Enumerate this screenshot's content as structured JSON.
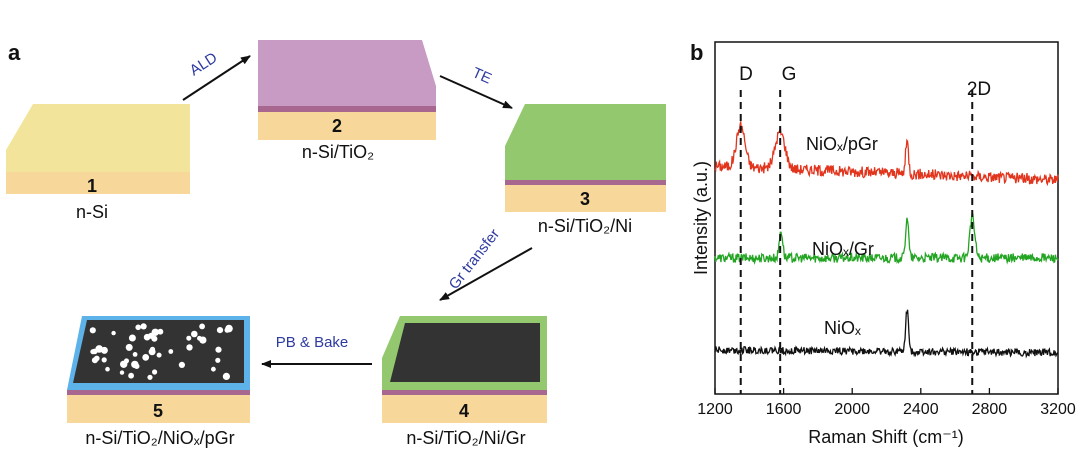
{
  "panel_a": {
    "label": "a",
    "steps": [
      {
        "number": "1",
        "label": "n-Si"
      },
      {
        "number": "2",
        "label": "n-Si/TiO₂"
      },
      {
        "number": "3",
        "label": "n-Si/TiO₂/Ni"
      },
      {
        "number": "4",
        "label": "n-Si/TiO₂/Ni/Gr"
      },
      {
        "number": "5",
        "label": "n-Si/TiO₂/NiOₓ/pGr"
      }
    ],
    "arrows": [
      "ALD",
      "TE",
      "Gr transfer",
      "PB & Bake"
    ],
    "colors": {
      "si": "#f7d79a",
      "tio2": "#a7678f",
      "ni": "#93c86e",
      "graphene": "#333333",
      "niox": "#5eb2ea",
      "arrow_text": "#2d3aa0",
      "top_1": "#f2e49a",
      "top_2": "#c79bc3"
    }
  },
  "panel_b": {
    "label": "b",
    "peaks": [
      "D",
      "G",
      "2D"
    ],
    "peak_positions": [
      1350,
      1580,
      2700
    ],
    "xlabel": "Raman Shift (cm⁻¹)",
    "ylabel": "Intensity (a.u.)",
    "xticks": [
      "1200",
      "1600",
      "2000",
      "2400",
      "2800",
      "3200"
    ],
    "series_labels": [
      "NiOₓ/pGr",
      "NiOₓ/Gr",
      "NiOₓ"
    ]
  },
  "chart_data": {
    "type": "line",
    "xlabel": "Raman Shift (cm⁻¹)",
    "ylabel": "Intensity (a.u.)",
    "xlim": [
      1200,
      3200
    ],
    "xticks": [
      1200,
      1600,
      2000,
      2400,
      2800,
      3200
    ],
    "series": [
      {
        "name": "NiOₓ/pGr",
        "color": "#e2351e",
        "offset": 2.0,
        "peaks": [
          {
            "x": 1350,
            "height": 0.45,
            "width": 35
          },
          {
            "x": 1580,
            "height": 0.4,
            "width": 40
          },
          {
            "x": 2320,
            "height": 0.35,
            "width": 12
          }
        ],
        "slope": -0.15,
        "noise": 0.06
      },
      {
        "name": "NiOₓ/Gr",
        "color": "#23a523",
        "offset": 1.0,
        "peaks": [
          {
            "x": 1585,
            "height": 0.3,
            "width": 14
          },
          {
            "x": 2320,
            "height": 0.45,
            "width": 12
          },
          {
            "x": 2700,
            "height": 0.45,
            "width": 20
          }
        ],
        "slope": 0,
        "noise": 0.05
      },
      {
        "name": "NiOₓ",
        "color": "#111111",
        "offset": 0.0,
        "peaks": [
          {
            "x": 2320,
            "height": 0.45,
            "width": 12
          }
        ],
        "slope": -0.03,
        "noise": 0.04
      }
    ],
    "vlines": [
      1350,
      1580,
      2700
    ],
    "grid": false,
    "legend": "none"
  }
}
